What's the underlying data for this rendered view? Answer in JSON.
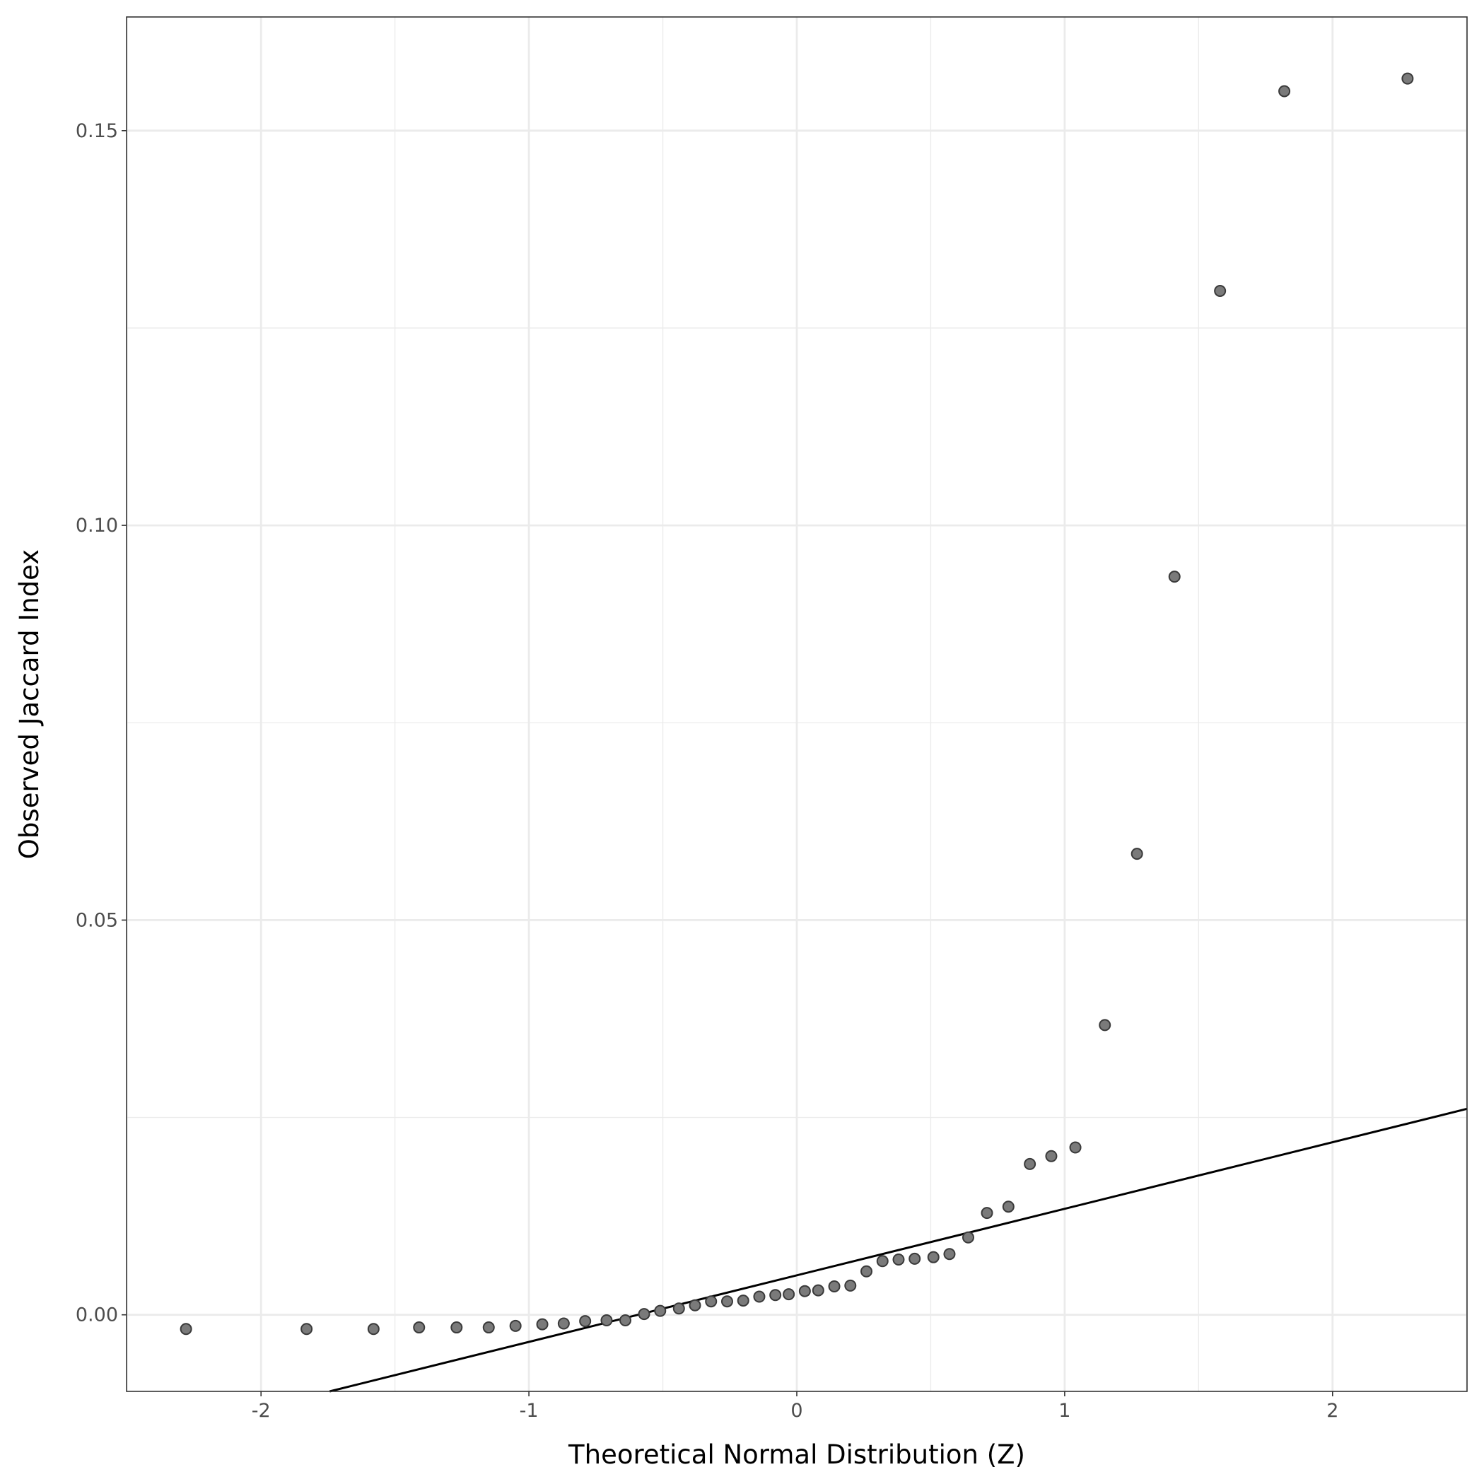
{
  "chart_data": {
    "type": "scatter",
    "title": "",
    "xlabel": "Theoretical Normal Distribution (Z)",
    "ylabel": "Observed Jaccard Index",
    "xlim": [
      -2.502,
      2.502
    ],
    "ylim": [
      -0.0097,
      0.1644
    ],
    "grid": true,
    "x_ticks": [
      -2,
      -1,
      0,
      1,
      2
    ],
    "x_tick_labels": [
      "-2",
      "-1",
      "0",
      "1",
      "2"
    ],
    "y_ticks": [
      0,
      0.05,
      0.1,
      0.15
    ],
    "y_tick_labels": [
      "0.00",
      "0.05",
      "0.10",
      "0.15"
    ],
    "point_color": "#7a7a7a",
    "line_color": "#000000",
    "reference_line": {
      "intercept": 0.005,
      "slope": 0.00843
    },
    "points": [
      [
        -2.28,
        -0.0018
      ],
      [
        -1.83,
        -0.0018
      ],
      [
        -1.58,
        -0.0018
      ],
      [
        -1.41,
        -0.0016
      ],
      [
        -1.27,
        -0.0016
      ],
      [
        -1.15,
        -0.0016
      ],
      [
        -1.05,
        -0.0014
      ],
      [
        -0.95,
        -0.0012
      ],
      [
        -0.87,
        -0.0011
      ],
      [
        -0.79,
        -0.0008
      ],
      [
        -0.71,
        -0.0007
      ],
      [
        -0.64,
        -0.0007
      ],
      [
        -0.57,
        0.0001
      ],
      [
        -0.51,
        0.0005
      ],
      [
        -0.44,
        0.0008
      ],
      [
        -0.38,
        0.0012
      ],
      [
        -0.32,
        0.0017
      ],
      [
        -0.26,
        0.0017
      ],
      [
        -0.2,
        0.0018
      ],
      [
        -0.14,
        0.0023
      ],
      [
        -0.08,
        0.0025
      ],
      [
        -0.03,
        0.0026
      ],
      [
        0.03,
        0.003
      ],
      [
        0.08,
        0.0031
      ],
      [
        0.14,
        0.0036
      ],
      [
        0.2,
        0.0037
      ],
      [
        0.26,
        0.0055
      ],
      [
        0.32,
        0.0068
      ],
      [
        0.38,
        0.007
      ],
      [
        0.44,
        0.0071
      ],
      [
        0.51,
        0.0073
      ],
      [
        0.57,
        0.0077
      ],
      [
        0.64,
        0.0098
      ],
      [
        0.71,
        0.0129
      ],
      [
        0.79,
        0.0137
      ],
      [
        0.87,
        0.0191
      ],
      [
        0.95,
        0.0201
      ],
      [
        1.04,
        0.0212
      ],
      [
        1.15,
        0.0367
      ],
      [
        1.27,
        0.0584
      ],
      [
        1.41,
        0.0935
      ],
      [
        1.58,
        0.1297
      ],
      [
        1.82,
        0.155
      ],
      [
        2.28,
        0.1566
      ]
    ]
  }
}
